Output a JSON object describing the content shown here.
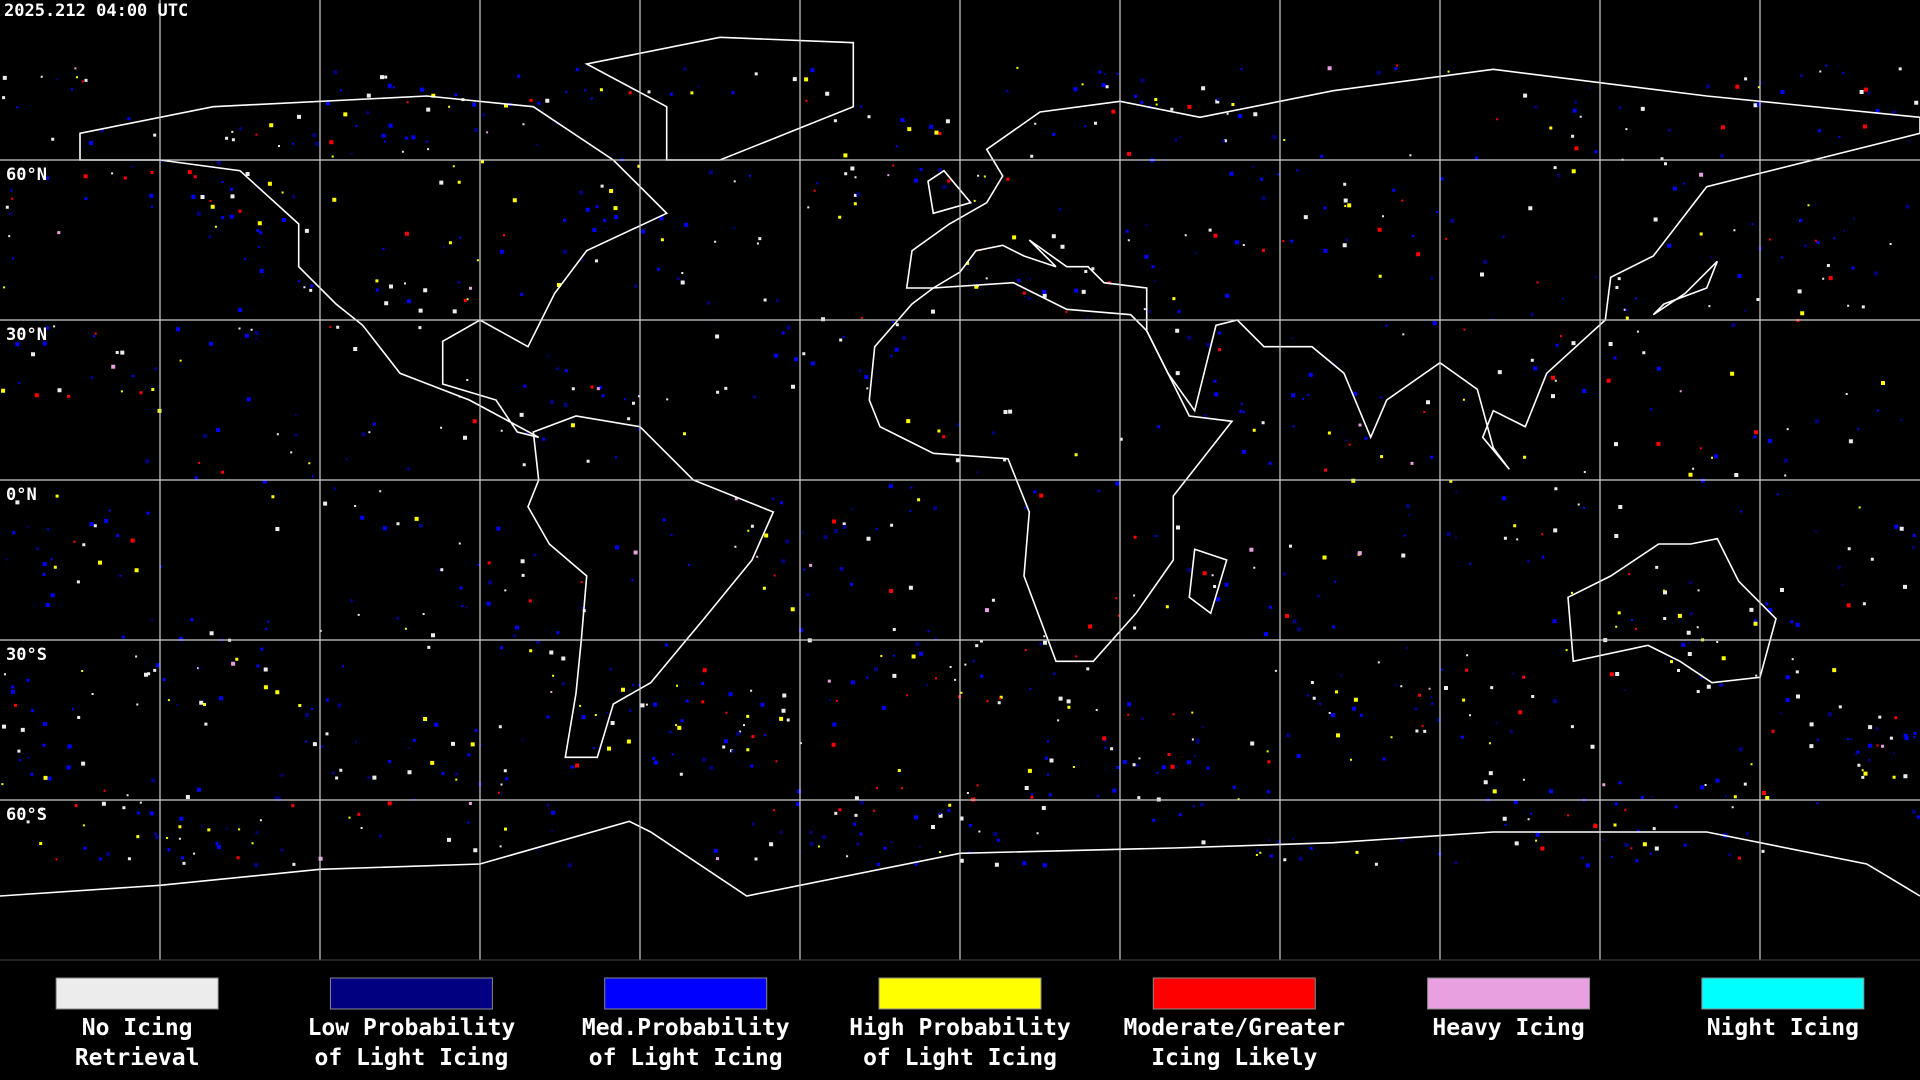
{
  "header": {
    "timestamp": "2025.212 04:00 UTC"
  },
  "map": {
    "latitude_labels": [
      "60°N",
      "30°N",
      "0°N",
      "30°S",
      "60°S"
    ]
  },
  "legend": {
    "items": [
      {
        "label": [
          "No Icing",
          "Retrieval"
        ],
        "color": "#ececec"
      },
      {
        "label": [
          "Low Probability",
          "of Light Icing"
        ],
        "color": "#000080"
      },
      {
        "label": [
          "Med.Probability",
          "of Light Icing"
        ],
        "color": "#0000ff"
      },
      {
        "label": [
          "High Probability",
          "of Light Icing"
        ],
        "color": "#ffff00"
      },
      {
        "label": [
          "Moderate/Greater",
          "Icing Likely"
        ],
        "color": "#ff0000"
      },
      {
        "label": [
          "Heavy Icing"
        ],
        "color": "#e8a0e0"
      },
      {
        "label": [
          "Night Icing"
        ],
        "color": "#00ffff"
      }
    ]
  }
}
